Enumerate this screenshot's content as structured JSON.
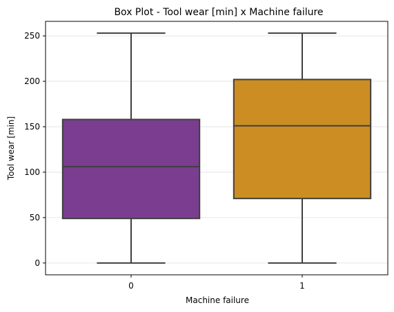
{
  "chart_data": {
    "type": "box",
    "title": "Box Plot - Tool wear [min] x Machine failure",
    "xlabel": "Machine failure",
    "ylabel": "Tool wear [min]",
    "categories": [
      "0",
      "1"
    ],
    "ylim": [
      -13,
      266
    ],
    "yticks": [
      0,
      50,
      100,
      150,
      200,
      250
    ],
    "ytick_labels": [
      "0",
      "50",
      "100",
      "150",
      "200",
      "250"
    ],
    "grid": "horizontal",
    "boxes": [
      {
        "category": "0",
        "min": 0,
        "q1": 49,
        "median": 106,
        "q3": 158,
        "max": 253,
        "color": "#7b3d8f"
      },
      {
        "category": "1",
        "min": 0,
        "q1": 71,
        "median": 151,
        "q3": 202,
        "max": 253,
        "color": "#cc8d23"
      }
    ],
    "line_color": "#3f3f3f",
    "grid_color": "#e6e6e6"
  }
}
